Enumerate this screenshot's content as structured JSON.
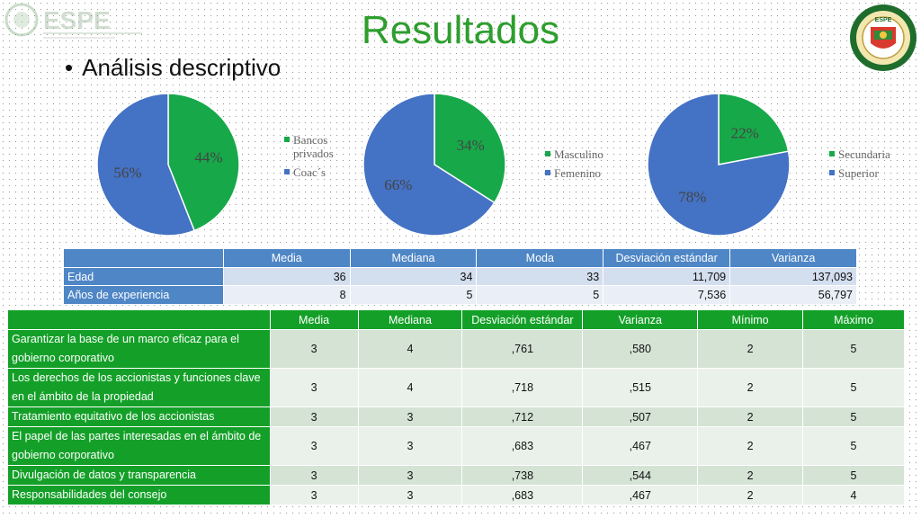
{
  "header": {
    "title": "Resultados",
    "bullet": "Análisis descriptivo",
    "logo_left_text": "ESPE",
    "logo_right_text": "ESPE"
  },
  "colors": {
    "blue": "#4472c4",
    "green": "#17a84a",
    "title_green": "#2e9e2e",
    "table1_header": "#4e86c6",
    "table2_header": "#14a028"
  },
  "chart_data": [
    {
      "type": "pie",
      "slices": [
        {
          "label": "Bancos privados",
          "value": 44,
          "display": "44%",
          "color": "#17a84a"
        },
        {
          "label": "Coac´s",
          "value": 56,
          "display": "56%",
          "color": "#4472c4"
        }
      ],
      "legend_position": "right"
    },
    {
      "type": "pie",
      "slices": [
        {
          "label": "Masculino",
          "value": 34,
          "display": "34%",
          "color": "#17a84a"
        },
        {
          "label": "Femenino",
          "value": 66,
          "display": "66%",
          "color": "#4472c4"
        }
      ],
      "legend_position": "right"
    },
    {
      "type": "pie",
      "slices": [
        {
          "label": "Secundaria",
          "value": 22,
          "display": "22%",
          "color": "#17a84a"
        },
        {
          "label": "Superior",
          "value": 78,
          "display": "78%",
          "color": "#4472c4"
        }
      ],
      "legend_position": "right"
    }
  ],
  "table1": {
    "headers": [
      "",
      "Media",
      "Mediana",
      "Moda",
      "Desviación estándar",
      "Varianza"
    ],
    "rows": [
      [
        "Edad",
        "36",
        "34",
        "33",
        "11,709",
        "137,093"
      ],
      [
        "Años de experiencia",
        "8",
        "5",
        "5",
        "7,536",
        "56,797"
      ]
    ]
  },
  "table2": {
    "headers": [
      "",
      "Media",
      "Mediana",
      "Desviación estándar",
      "Varianza",
      "Mínimo",
      "Máximo"
    ],
    "rows": [
      [
        "Garantizar la base de un marco eficaz para el gobierno corporativo",
        "3",
        "4",
        ",761",
        ",580",
        "2",
        "5"
      ],
      [
        "Los derechos de los accionistas y funciones clave en el ámbito de la propiedad",
        "3",
        "4",
        ",718",
        ",515",
        "2",
        "5"
      ],
      [
        "Tratamiento equitativo de los accionistas",
        "3",
        "3",
        ",712",
        ",507",
        "2",
        "5"
      ],
      [
        "El papel de las partes interesadas en el ámbito de gobierno corporativo",
        "3",
        "3",
        ",683",
        ",467",
        "2",
        "5"
      ],
      [
        "Divulgación de datos y transparencia",
        "3",
        "3",
        ",738",
        ",544",
        "2",
        "5"
      ],
      [
        "Responsabilidades del consejo",
        "3",
        "3",
        ",683",
        ",467",
        "2",
        "4"
      ]
    ]
  }
}
